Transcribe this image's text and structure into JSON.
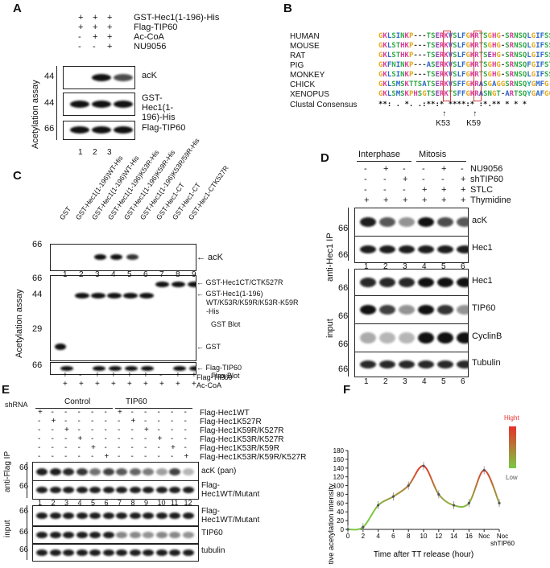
{
  "panels": {
    "A": "A",
    "B": "B",
    "C": "C",
    "D": "D",
    "E": "E",
    "F": "F"
  },
  "panelA": {
    "rows": [
      {
        "label": "GST-Hec1(1-196)-His",
        "marks": [
          "+",
          "+",
          "+"
        ]
      },
      {
        "label": "Flag-TIP60",
        "marks": [
          "+",
          "+",
          "+"
        ]
      },
      {
        "label": "Ac-CoA",
        "marks": [
          "-",
          "+",
          "+"
        ]
      },
      {
        "label": "NU9056",
        "marks": [
          "-",
          "-",
          "+"
        ]
      }
    ],
    "blots": [
      {
        "label": "acK",
        "mw": "44"
      },
      {
        "label": "GST-Hec1(1-196)-His",
        "mw": "44"
      },
      {
        "label": "Flag-TIP60",
        "mw": "66"
      }
    ],
    "side_label": "Acetylation assay",
    "lanes": [
      "1",
      "2",
      "3"
    ]
  },
  "panelB": {
    "species": [
      "HUMAN",
      "MOUSE",
      "RAT",
      "PIG",
      "MONKEY",
      "CHICK",
      "XENOPUS"
    ],
    "sequences": [
      "GKLSINKP---TSERKVSLFGKRTSGHG-SRNSQLGIFSS",
      "GKLSTHKP---TSERKVSLFGKRTSGHG-SRNSQLGIFSS",
      "GKLSTHKP---TSERKVSLFGKRTSEHG-SRNSQLGIFSS",
      "GKFNINKP---ASERKVSLFGKRTSGHG-SRNSQFGIFST",
      "GKLSINKP---TSERKVSLFGKRTSGHG-SRNSQLGIFSS",
      "GKLSMSKTTSATSERKVSFFGKRASGAGGSRNSQYGMFG-",
      "GKLSMSKPHSGTSERKTSFFGKRASNGT-ARTSQYGAFGG"
    ],
    "consensus_label": "Clustal Consensus",
    "consensus": "**:   .   *.   .:**:*  ****:*   :*.** * * *",
    "sites": [
      "K53",
      "K59"
    ]
  },
  "panelC": {
    "constructs": [
      "GST",
      "GST-Hec1(1-196)WT-His",
      "GST-Hec1(1-196)WT-His",
      "GST-Hec1(1-196)K53R-His",
      "GST-Hec1(1-196)K59R-His",
      "GST-Hec1(1-196)K53R/59R-His",
      "GST-Hec1-CT",
      "GST-Hec1-CT",
      "GST-Hec1-CTK527R"
    ],
    "lanes": [
      "1",
      "2",
      "3",
      "4",
      "5",
      "6",
      "7",
      "8",
      "9"
    ],
    "mw_top": "66",
    "mw_mid": [
      "66",
      "44",
      "29"
    ],
    "mw_bot": "66",
    "ack": "acK",
    "gst_labels": [
      "GST-Hec1CT/CTK527R",
      "GST-Hec1(1-196)",
      "WT/K53R/K59R/K53R-K59R",
      "-His",
      "GST"
    ],
    "gst_blot": "GST Blot",
    "flag_label": "Flag-TIP60",
    "flag_blot": "Flag Blot",
    "side_label": "Acetylation assay",
    "rows": [
      {
        "label": "Flag-TIP60",
        "marks": [
          "+",
          "-",
          "+",
          "+",
          "+",
          "+",
          "-",
          "+",
          "+"
        ]
      },
      {
        "label": "Ac-CoA",
        "marks": [
          "+",
          "+",
          "+",
          "+",
          "+",
          "+",
          "+",
          "+",
          "+"
        ]
      }
    ]
  },
  "panelD": {
    "groups": [
      "Interphase",
      "Mitosis"
    ],
    "rows": [
      {
        "label": "NU9056",
        "marks": [
          "-",
          "+",
          "-",
          "-",
          "+",
          "-"
        ]
      },
      {
        "label": "shTIP60",
        "marks": [
          "-",
          "-",
          "+",
          "-",
          "-",
          "+"
        ]
      },
      {
        "label": "STLC",
        "marks": [
          "-",
          "-",
          "-",
          "+",
          "+",
          "+"
        ]
      },
      {
        "label": "Thymidine",
        "marks": [
          "+",
          "+",
          "+",
          "+",
          "+",
          "+"
        ]
      }
    ],
    "ip_label": "anti-Hec1 IP",
    "input_label": "input",
    "blots_ip": [
      "acK",
      "Hec1"
    ],
    "blots_input": [
      "Hec1",
      "TIP60",
      "CyclinB",
      "Tubulin"
    ],
    "mw": "66",
    "lanes": [
      "1",
      "2",
      "3",
      "4",
      "5",
      "6"
    ]
  },
  "panelE": {
    "shrna": "shRNA",
    "groups": [
      "Control",
      "TIP60"
    ],
    "rows": [
      "Flag-Hec1WT",
      "Flag-Hec1K527R",
      "Flag-Hec1K59R/K527R",
      "Flag-Hec1K53R/K527R",
      "Flag-Hec1K53R/K59R",
      "Flag-Hec1K53R/K59R/K527R"
    ],
    "ip_label": "anti-Flag IP",
    "input_label": "input",
    "blots_ip": [
      "acK (pan)",
      "Flag-Hec1WT/Mutant"
    ],
    "blots_input": [
      "Flag-Hec1WT/Mutant",
      "TIP60",
      "tubulin"
    ],
    "mw": "66",
    "lanes": [
      "1",
      "2",
      "3",
      "4",
      "5",
      "6",
      "7",
      "8",
      "9",
      "10",
      "11",
      "12"
    ]
  },
  "chart_data": {
    "type": "line",
    "xlabel": "Time after TT release (hour)",
    "ylabel": "Relative acetylation intensity",
    "xticks": [
      "0",
      "2",
      "4",
      "6",
      "8",
      "10",
      "12",
      "14",
      "16",
      "Noc",
      "Noc shTIP60"
    ],
    "yticks": [
      "0",
      "20",
      "40",
      "60",
      "80",
      "100",
      "120",
      "140",
      "160",
      "180"
    ],
    "ylim": [
      0,
      180
    ],
    "x": [
      "0",
      "2",
      "4",
      "6",
      "8",
      "10",
      "12",
      "14",
      "16",
      "Noc",
      "Noc shTIP60"
    ],
    "values": [
      0,
      5,
      55,
      75,
      100,
      145,
      80,
      55,
      60,
      135,
      60
    ],
    "legend": {
      "high": "Hight",
      "low": "Low"
    },
    "colors": {
      "high": "#e8302a",
      "low": "#7ac943"
    }
  }
}
